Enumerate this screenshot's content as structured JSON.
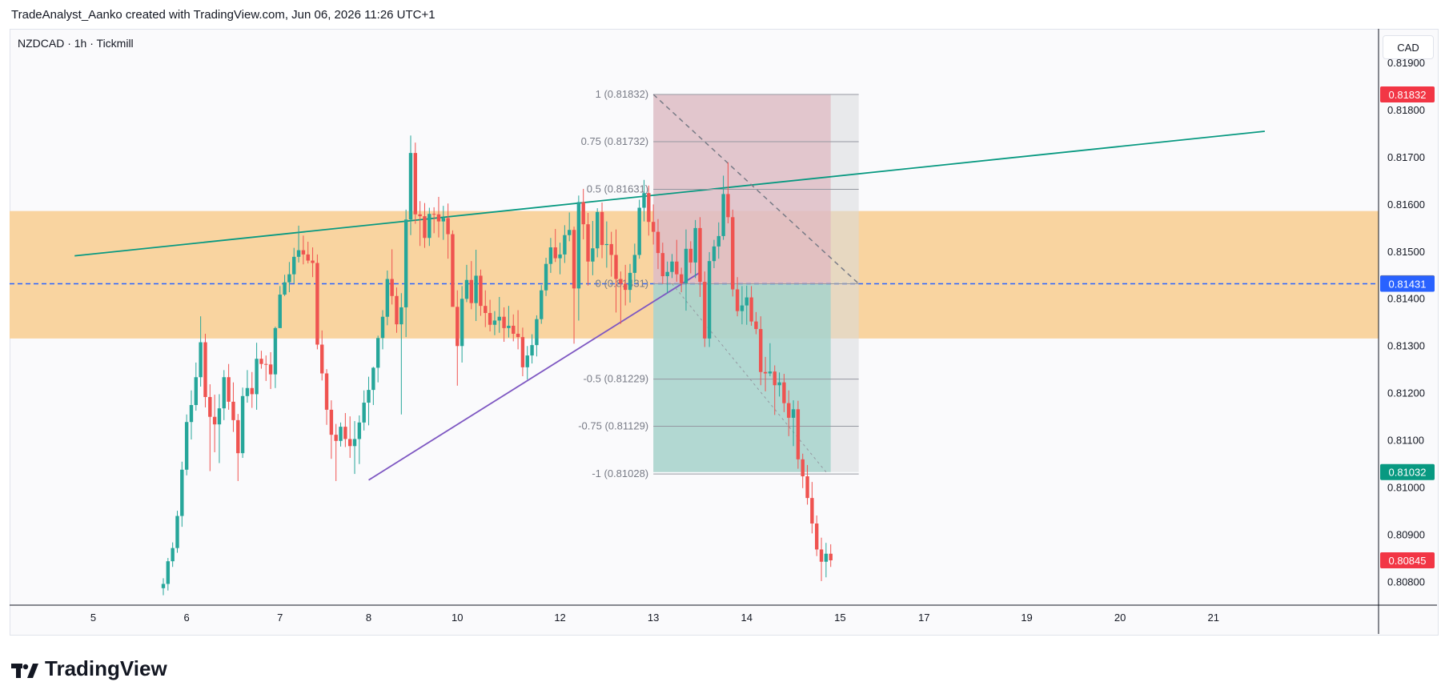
{
  "header": {
    "attribution": "TradeAnalyst_Aanko created with TradingView.com, Jun 06, 2026 11:26 UTC+1"
  },
  "symbol": {
    "label": "NZDCAD · 1h · Tickmill"
  },
  "currency_button": "CAD",
  "footer": {
    "brand": "TradingView"
  },
  "colors": {
    "bull": "#26a69a",
    "bear": "#ef5350",
    "zone": "#f9d29b",
    "trendline_green": "#089981",
    "trendline_purple": "#7e57c2",
    "dashed_level": "#2962ff",
    "stop_zone": "#e0b7c0",
    "target_zone": "#a4d3cc"
  },
  "chart_data": {
    "type": "candlestick",
    "instrument": "NZDCAD",
    "timeframe": "1h",
    "broker": "Tickmill",
    "price_axis_ticks": [
      "0.81900",
      "0.81800",
      "0.81700",
      "0.81600",
      "0.81500",
      "0.81400",
      "0.81300",
      "0.81200",
      "0.81100",
      "0.81000",
      "0.80900",
      "0.80800"
    ],
    "price_tick_values": [
      0.819,
      0.818,
      0.817,
      0.816,
      0.815,
      0.814,
      0.813,
      0.812,
      0.811,
      0.81,
      0.809,
      0.808
    ],
    "ylim": [
      0.8078,
      0.8192
    ],
    "time_axis_ticks": [
      {
        "label": "5",
        "index": -15
      },
      {
        "label": "6",
        "index": 5
      },
      {
        "label": "7",
        "index": 25
      },
      {
        "label": "8",
        "index": 44
      },
      {
        "label": "10",
        "index": 63
      },
      {
        "label": "12",
        "index": 85
      },
      {
        "label": "13",
        "index": 105
      },
      {
        "label": "14",
        "index": 125
      },
      {
        "label": "15",
        "index": 145
      },
      {
        "label": "17",
        "index": 163
      },
      {
        "label": "19",
        "index": 185
      },
      {
        "label": "20",
        "index": 205
      },
      {
        "label": "21",
        "index": 225
      }
    ],
    "price_labels": [
      {
        "text": "0.81832",
        "value": 0.81832,
        "color": "#f23645"
      },
      {
        "text": "0.81432",
        "value": 0.81432,
        "color": "#787b86"
      },
      {
        "text": "0.81431",
        "value": 0.81431,
        "color": "#2962ff"
      },
      {
        "text": "0.81032",
        "value": 0.81032,
        "color": "#089981"
      },
      {
        "text": "0.80845",
        "value": 0.80845,
        "color": "#f23645"
      }
    ],
    "fib_levels": [
      {
        "label": "1 (0.81832)",
        "value": 0.81832
      },
      {
        "label": "0.75 (0.81732)",
        "value": 0.81732
      },
      {
        "label": "0.5 (0.81631)",
        "value": 0.81631
      },
      {
        "label": "0 (0.81431)",
        "value": 0.81431
      },
      {
        "label": "-0.5 (0.81229)",
        "value": 0.81229
      },
      {
        "label": "-0.75 (0.81129)",
        "value": 0.81129
      },
      {
        "label": "-1 (0.81028)",
        "value": 0.81028
      }
    ],
    "supply_zone": {
      "top": 0.81585,
      "bottom": 0.81315
    },
    "horizontal_dashed_level": 0.81431,
    "trendlines": [
      {
        "name": "resistance",
        "from": {
          "index": -19,
          "price": 0.8149
        },
        "to": {
          "index": 236,
          "price": 0.81754
        }
      },
      {
        "name": "support",
        "from": {
          "index": 44,
          "price": 0.81015
        },
        "to": {
          "index": 115,
          "price": 0.81455
        }
      }
    ],
    "short_position": {
      "entry": 0.81431,
      "stop": 0.81832,
      "target": 0.81032,
      "start_index": 105,
      "end_index": 143
    },
    "candles": [
      {
        "o": 0.80786,
        "h": 0.80807,
        "l": 0.80771,
        "c": 0.80795
      },
      {
        "o": 0.80795,
        "h": 0.8085,
        "l": 0.80781,
        "c": 0.80843
      },
      {
        "o": 0.80843,
        "h": 0.80883,
        "l": 0.80831,
        "c": 0.80871
      },
      {
        "o": 0.80871,
        "h": 0.8095,
        "l": 0.80861,
        "c": 0.80939
      },
      {
        "o": 0.80939,
        "h": 0.81054,
        "l": 0.80916,
        "c": 0.81037
      },
      {
        "o": 0.81037,
        "h": 0.81154,
        "l": 0.81025,
        "c": 0.81138
      },
      {
        "o": 0.81138,
        "h": 0.81205,
        "l": 0.81101,
        "c": 0.81174
      },
      {
        "o": 0.81174,
        "h": 0.81264,
        "l": 0.81162,
        "c": 0.81233
      },
      {
        "o": 0.81233,
        "h": 0.81362,
        "l": 0.81213,
        "c": 0.81307
      },
      {
        "o": 0.81307,
        "h": 0.81325,
        "l": 0.81169,
        "c": 0.81191
      },
      {
        "o": 0.81191,
        "h": 0.81218,
        "l": 0.81034,
        "c": 0.81149
      },
      {
        "o": 0.81149,
        "h": 0.81196,
        "l": 0.81074,
        "c": 0.81133
      },
      {
        "o": 0.81133,
        "h": 0.81197,
        "l": 0.81051,
        "c": 0.81167
      },
      {
        "o": 0.81167,
        "h": 0.81248,
        "l": 0.81142,
        "c": 0.81233
      },
      {
        "o": 0.81233,
        "h": 0.81261,
        "l": 0.81164,
        "c": 0.81181
      },
      {
        "o": 0.81181,
        "h": 0.81222,
        "l": 0.81117,
        "c": 0.81142
      },
      {
        "o": 0.81142,
        "h": 0.81155,
        "l": 0.81013,
        "c": 0.81072
      },
      {
        "o": 0.81072,
        "h": 0.81211,
        "l": 0.81062,
        "c": 0.81193
      },
      {
        "o": 0.81193,
        "h": 0.81248,
        "l": 0.81179,
        "c": 0.8121
      },
      {
        "o": 0.8121,
        "h": 0.81244,
        "l": 0.81168,
        "c": 0.81197
      },
      {
        "o": 0.81197,
        "h": 0.81306,
        "l": 0.81164,
        "c": 0.81272
      },
      {
        "o": 0.81272,
        "h": 0.81289,
        "l": 0.81251,
        "c": 0.81261
      },
      {
        "o": 0.81261,
        "h": 0.81279,
        "l": 0.81225,
        "c": 0.8126
      },
      {
        "o": 0.8126,
        "h": 0.81286,
        "l": 0.81208,
        "c": 0.81239
      },
      {
        "o": 0.81239,
        "h": 0.8134,
        "l": 0.8121,
        "c": 0.81337
      },
      {
        "o": 0.81337,
        "h": 0.81426,
        "l": 0.81341,
        "c": 0.81408
      },
      {
        "o": 0.81408,
        "h": 0.8145,
        "l": 0.81405,
        "c": 0.81434
      },
      {
        "o": 0.81434,
        "h": 0.81477,
        "l": 0.81413,
        "c": 0.81451
      },
      {
        "o": 0.81451,
        "h": 0.81507,
        "l": 0.81432,
        "c": 0.81488
      },
      {
        "o": 0.81488,
        "h": 0.81554,
        "l": 0.81476,
        "c": 0.81502
      },
      {
        "o": 0.81502,
        "h": 0.81533,
        "l": 0.81472,
        "c": 0.81493
      },
      {
        "o": 0.81493,
        "h": 0.8152,
        "l": 0.81474,
        "c": 0.8148
      },
      {
        "o": 0.8148,
        "h": 0.81508,
        "l": 0.81445,
        "c": 0.81475
      },
      {
        "o": 0.81475,
        "h": 0.81493,
        "l": 0.81292,
        "c": 0.81302
      },
      {
        "o": 0.81302,
        "h": 0.81332,
        "l": 0.81226,
        "c": 0.81241
      },
      {
        "o": 0.81241,
        "h": 0.8125,
        "l": 0.81132,
        "c": 0.81164
      },
      {
        "o": 0.81164,
        "h": 0.81184,
        "l": 0.8106,
        "c": 0.81111
      },
      {
        "o": 0.81111,
        "h": 0.81134,
        "l": 0.81013,
        "c": 0.81098
      },
      {
        "o": 0.81098,
        "h": 0.81137,
        "l": 0.81086,
        "c": 0.81128
      },
      {
        "o": 0.81128,
        "h": 0.81157,
        "l": 0.81085,
        "c": 0.81102
      },
      {
        "o": 0.81102,
        "h": 0.8115,
        "l": 0.81062,
        "c": 0.81087
      },
      {
        "o": 0.81087,
        "h": 0.8114,
        "l": 0.81028,
        "c": 0.81102
      },
      {
        "o": 0.81102,
        "h": 0.81152,
        "l": 0.81049,
        "c": 0.81137
      },
      {
        "o": 0.81137,
        "h": 0.81205,
        "l": 0.8112,
        "c": 0.81179
      },
      {
        "o": 0.81179,
        "h": 0.81234,
        "l": 0.81131,
        "c": 0.81206
      },
      {
        "o": 0.81206,
        "h": 0.81255,
        "l": 0.81174,
        "c": 0.81253
      },
      {
        "o": 0.81253,
        "h": 0.81321,
        "l": 0.81222,
        "c": 0.81316
      },
      {
        "o": 0.81316,
        "h": 0.81375,
        "l": 0.81292,
        "c": 0.81361
      },
      {
        "o": 0.81361,
        "h": 0.81459,
        "l": 0.81343,
        "c": 0.81441
      },
      {
        "o": 0.81441,
        "h": 0.81504,
        "l": 0.81387,
        "c": 0.81405
      },
      {
        "o": 0.81405,
        "h": 0.81423,
        "l": 0.81327,
        "c": 0.81345
      },
      {
        "o": 0.81345,
        "h": 0.81411,
        "l": 0.81154,
        "c": 0.81381
      },
      {
        "o": 0.81381,
        "h": 0.81588,
        "l": 0.81318,
        "c": 0.81567
      },
      {
        "o": 0.81567,
        "h": 0.81745,
        "l": 0.81534,
        "c": 0.81708
      },
      {
        "o": 0.81708,
        "h": 0.8173,
        "l": 0.81558,
        "c": 0.81578
      },
      {
        "o": 0.81578,
        "h": 0.81606,
        "l": 0.81511,
        "c": 0.81574
      },
      {
        "o": 0.81574,
        "h": 0.81602,
        "l": 0.81507,
        "c": 0.81528
      },
      {
        "o": 0.81528,
        "h": 0.81592,
        "l": 0.81511,
        "c": 0.81579
      },
      {
        "o": 0.81579,
        "h": 0.81593,
        "l": 0.81538,
        "c": 0.81578
      },
      {
        "o": 0.81578,
        "h": 0.81615,
        "l": 0.81529,
        "c": 0.81563
      },
      {
        "o": 0.81563,
        "h": 0.81596,
        "l": 0.81524,
        "c": 0.8157
      },
      {
        "o": 0.8157,
        "h": 0.81601,
        "l": 0.81484,
        "c": 0.81536
      },
      {
        "o": 0.81536,
        "h": 0.81544,
        "l": 0.81384,
        "c": 0.81382
      },
      {
        "o": 0.81382,
        "h": 0.81417,
        "l": 0.81215,
        "c": 0.81299
      },
      {
        "o": 0.81299,
        "h": 0.81426,
        "l": 0.81264,
        "c": 0.81399
      },
      {
        "o": 0.81399,
        "h": 0.81471,
        "l": 0.81392,
        "c": 0.81439
      },
      {
        "o": 0.81439,
        "h": 0.81479,
        "l": 0.81377,
        "c": 0.8139
      },
      {
        "o": 0.8139,
        "h": 0.81503,
        "l": 0.81352,
        "c": 0.81448
      },
      {
        "o": 0.81448,
        "h": 0.81461,
        "l": 0.81363,
        "c": 0.81384
      },
      {
        "o": 0.81384,
        "h": 0.81417,
        "l": 0.81339,
        "c": 0.81369
      },
      {
        "o": 0.81369,
        "h": 0.81397,
        "l": 0.8133,
        "c": 0.81344
      },
      {
        "o": 0.81344,
        "h": 0.81373,
        "l": 0.81322,
        "c": 0.81353
      },
      {
        "o": 0.81353,
        "h": 0.81403,
        "l": 0.81327,
        "c": 0.81361
      },
      {
        "o": 0.81361,
        "h": 0.81381,
        "l": 0.81308,
        "c": 0.81337
      },
      {
        "o": 0.81337,
        "h": 0.81384,
        "l": 0.81317,
        "c": 0.81342
      },
      {
        "o": 0.81342,
        "h": 0.81366,
        "l": 0.81309,
        "c": 0.81325
      },
      {
        "o": 0.81325,
        "h": 0.81375,
        "l": 0.81292,
        "c": 0.81318
      },
      {
        "o": 0.81318,
        "h": 0.81338,
        "l": 0.81235,
        "c": 0.81254
      },
      {
        "o": 0.81254,
        "h": 0.81299,
        "l": 0.81228,
        "c": 0.81279
      },
      {
        "o": 0.81279,
        "h": 0.81324,
        "l": 0.81262,
        "c": 0.81301
      },
      {
        "o": 0.81301,
        "h": 0.81364,
        "l": 0.81277,
        "c": 0.81356
      },
      {
        "o": 0.81356,
        "h": 0.81428,
        "l": 0.81346,
        "c": 0.81417
      },
      {
        "o": 0.81417,
        "h": 0.81486,
        "l": 0.81405,
        "c": 0.81473
      },
      {
        "o": 0.81473,
        "h": 0.81528,
        "l": 0.81454,
        "c": 0.81508
      },
      {
        "o": 0.81508,
        "h": 0.81547,
        "l": 0.81477,
        "c": 0.81485
      },
      {
        "o": 0.81485,
        "h": 0.81518,
        "l": 0.81451,
        "c": 0.81493
      },
      {
        "o": 0.81493,
        "h": 0.81555,
        "l": 0.81475,
        "c": 0.81534
      },
      {
        "o": 0.81534,
        "h": 0.81582,
        "l": 0.81521,
        "c": 0.81545
      },
      {
        "o": 0.81545,
        "h": 0.81552,
        "l": 0.81304,
        "c": 0.81421
      },
      {
        "o": 0.81421,
        "h": 0.81618,
        "l": 0.81353,
        "c": 0.81604
      },
      {
        "o": 0.81604,
        "h": 0.81632,
        "l": 0.81525,
        "c": 0.81557
      },
      {
        "o": 0.81557,
        "h": 0.81581,
        "l": 0.81427,
        "c": 0.81478
      },
      {
        "o": 0.81478,
        "h": 0.81564,
        "l": 0.81449,
        "c": 0.81506
      },
      {
        "o": 0.81506,
        "h": 0.81591,
        "l": 0.81487,
        "c": 0.81583
      },
      {
        "o": 0.81583,
        "h": 0.81603,
        "l": 0.81485,
        "c": 0.81513
      },
      {
        "o": 0.81513,
        "h": 0.81563,
        "l": 0.81465,
        "c": 0.81515
      },
      {
        "o": 0.81515,
        "h": 0.81541,
        "l": 0.81446,
        "c": 0.81492
      },
      {
        "o": 0.81492,
        "h": 0.81546,
        "l": 0.8137,
        "c": 0.81441
      },
      {
        "o": 0.81441,
        "h": 0.81457,
        "l": 0.81346,
        "c": 0.81431
      },
      {
        "o": 0.81431,
        "h": 0.81471,
        "l": 0.81385,
        "c": 0.81418
      },
      {
        "o": 0.81418,
        "h": 0.81473,
        "l": 0.81391,
        "c": 0.81454
      },
      {
        "o": 0.81454,
        "h": 0.81516,
        "l": 0.81433,
        "c": 0.81492
      },
      {
        "o": 0.81492,
        "h": 0.81609,
        "l": 0.81484,
        "c": 0.81592
      },
      {
        "o": 0.81592,
        "h": 0.81651,
        "l": 0.81563,
        "c": 0.81623
      },
      {
        "o": 0.81623,
        "h": 0.81639,
        "l": 0.81533,
        "c": 0.81562
      },
      {
        "o": 0.81562,
        "h": 0.81599,
        "l": 0.81514,
        "c": 0.81541
      },
      {
        "o": 0.81541,
        "h": 0.81568,
        "l": 0.81462,
        "c": 0.81496
      },
      {
        "o": 0.81496,
        "h": 0.81518,
        "l": 0.81431,
        "c": 0.81447
      },
      {
        "o": 0.81447,
        "h": 0.81478,
        "l": 0.81411,
        "c": 0.81456
      },
      {
        "o": 0.81456,
        "h": 0.81494,
        "l": 0.81443,
        "c": 0.81478
      },
      {
        "o": 0.81478,
        "h": 0.81524,
        "l": 0.81435,
        "c": 0.81451
      },
      {
        "o": 0.81451,
        "h": 0.81465,
        "l": 0.81413,
        "c": 0.81432
      },
      {
        "o": 0.81432,
        "h": 0.81546,
        "l": 0.81374,
        "c": 0.81505
      },
      {
        "o": 0.81505,
        "h": 0.81521,
        "l": 0.81453,
        "c": 0.81476
      },
      {
        "o": 0.81476,
        "h": 0.81566,
        "l": 0.81443,
        "c": 0.81549
      },
      {
        "o": 0.81549,
        "h": 0.81572,
        "l": 0.81403,
        "c": 0.81435
      },
      {
        "o": 0.81435,
        "h": 0.81457,
        "l": 0.81297,
        "c": 0.81315
      },
      {
        "o": 0.81315,
        "h": 0.81498,
        "l": 0.81297,
        "c": 0.81479
      },
      {
        "o": 0.81479,
        "h": 0.81524,
        "l": 0.81464,
        "c": 0.8151
      },
      {
        "o": 0.8151,
        "h": 0.81561,
        "l": 0.81484,
        "c": 0.81532
      },
      {
        "o": 0.81532,
        "h": 0.8166,
        "l": 0.81524,
        "c": 0.81621
      },
      {
        "o": 0.81621,
        "h": 0.81688,
        "l": 0.81559,
        "c": 0.81572
      },
      {
        "o": 0.81572,
        "h": 0.81588,
        "l": 0.81404,
        "c": 0.81419
      },
      {
        "o": 0.81419,
        "h": 0.81445,
        "l": 0.81362,
        "c": 0.81373
      },
      {
        "o": 0.81373,
        "h": 0.81426,
        "l": 0.81345,
        "c": 0.81385
      },
      {
        "o": 0.81385,
        "h": 0.81427,
        "l": 0.81344,
        "c": 0.81402
      },
      {
        "o": 0.81402,
        "h": 0.81426,
        "l": 0.81342,
        "c": 0.81351
      },
      {
        "o": 0.81351,
        "h": 0.81371,
        "l": 0.81324,
        "c": 0.81335
      },
      {
        "o": 0.81335,
        "h": 0.81362,
        "l": 0.81216,
        "c": 0.81244
      },
      {
        "o": 0.81244,
        "h": 0.81276,
        "l": 0.81203,
        "c": 0.81241
      },
      {
        "o": 0.81241,
        "h": 0.81305,
        "l": 0.81235,
        "c": 0.81245
      },
      {
        "o": 0.81245,
        "h": 0.81258,
        "l": 0.81153,
        "c": 0.81216
      },
      {
        "o": 0.81216,
        "h": 0.81243,
        "l": 0.81192,
        "c": 0.81222
      },
      {
        "o": 0.81222,
        "h": 0.8124,
        "l": 0.81159,
        "c": 0.81178
      },
      {
        "o": 0.81178,
        "h": 0.81205,
        "l": 0.81108,
        "c": 0.81147
      },
      {
        "o": 0.81147,
        "h": 0.81184,
        "l": 0.81087,
        "c": 0.81165
      },
      {
        "o": 0.81165,
        "h": 0.81183,
        "l": 0.81039,
        "c": 0.81059
      },
      {
        "o": 0.81059,
        "h": 0.81071,
        "l": 0.80998,
        "c": 0.81023
      },
      {
        "o": 0.81023,
        "h": 0.81047,
        "l": 0.80963,
        "c": 0.80977
      },
      {
        "o": 0.80977,
        "h": 0.81011,
        "l": 0.80902,
        "c": 0.80923
      },
      {
        "o": 0.80923,
        "h": 0.8094,
        "l": 0.80854,
        "c": 0.80868
      },
      {
        "o": 0.80868,
        "h": 0.80893,
        "l": 0.80801,
        "c": 0.80842
      },
      {
        "o": 0.80842,
        "h": 0.80882,
        "l": 0.80809,
        "c": 0.80859
      },
      {
        "o": 0.80859,
        "h": 0.80879,
        "l": 0.80831,
        "c": 0.80845
      }
    ]
  }
}
